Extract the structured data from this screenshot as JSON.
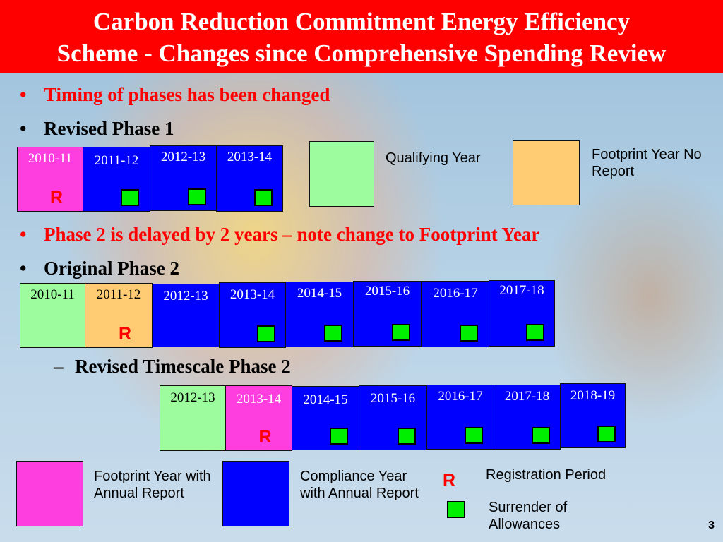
{
  "title": {
    "line1": "Carbon Reduction Commitment Energy Efficiency",
    "line2": "Scheme - Changes since Comprehensive Spending Review"
  },
  "bullets": {
    "b1": "Timing of phases has been changed",
    "b2": "Revised Phase 1",
    "b3": "Phase 2 is delayed by 2 years – note change to Footprint Year",
    "b4": "Original Phase 2",
    "b5": "Revised Timescale Phase 2",
    "dot": "•",
    "dash": "–"
  },
  "r_mark": "R",
  "revised_phase1": [
    {
      "year": "2010-11",
      "type": "footprint-annual",
      "fill": "#ff3ee0",
      "registration": true,
      "surrender": false
    },
    {
      "year": "2011-12",
      "type": "compliance",
      "fill": "#0000ff",
      "registration": false,
      "surrender": true
    },
    {
      "year": "2012-13",
      "type": "compliance",
      "fill": "#0000ff",
      "registration": false,
      "surrender": true
    },
    {
      "year": "2013-14",
      "type": "compliance",
      "fill": "#0000ff",
      "registration": false,
      "surrender": true
    }
  ],
  "original_phase2": [
    {
      "year": "2010-11",
      "type": "qualifying",
      "fill": "#9dfc9d",
      "registration": false,
      "surrender": false
    },
    {
      "year": "2011-12",
      "type": "footprint-no-report",
      "fill": "#ffcc73",
      "registration": true,
      "surrender": false
    },
    {
      "year": "2012-13",
      "type": "compliance",
      "fill": "#0000ff",
      "registration": false,
      "surrender": false
    },
    {
      "year": "2013-14",
      "type": "compliance",
      "fill": "#0000ff",
      "registration": false,
      "surrender": true
    },
    {
      "year": "2014-15",
      "type": "compliance",
      "fill": "#0000ff",
      "registration": false,
      "surrender": true
    },
    {
      "year": "2015-16",
      "type": "compliance",
      "fill": "#0000ff",
      "registration": false,
      "surrender": true
    },
    {
      "year": "2016-17",
      "type": "compliance",
      "fill": "#0000ff",
      "registration": false,
      "surrender": true
    },
    {
      "year": "2017-18",
      "type": "compliance",
      "fill": "#0000ff",
      "registration": false,
      "surrender": true
    }
  ],
  "revised_phase2": [
    {
      "year": "2012-13",
      "type": "qualifying",
      "fill": "#9dfc9d",
      "registration": false,
      "surrender": false
    },
    {
      "year": "2013-14",
      "type": "footprint-annual",
      "fill": "#ff3ee0",
      "registration": true,
      "surrender": false
    },
    {
      "year": "2014-15",
      "type": "compliance",
      "fill": "#0000ff",
      "registration": false,
      "surrender": true
    },
    {
      "year": "2015-16",
      "type": "compliance",
      "fill": "#0000ff",
      "registration": false,
      "surrender": true
    },
    {
      "year": "2016-17",
      "type": "compliance",
      "fill": "#0000ff",
      "registration": false,
      "surrender": true
    },
    {
      "year": "2017-18",
      "type": "compliance",
      "fill": "#0000ff",
      "registration": false,
      "surrender": true
    },
    {
      "year": "2018-19",
      "type": "compliance",
      "fill": "#0000ff",
      "registration": false,
      "surrender": true
    }
  ],
  "legend": {
    "qualifying": "Qualifying Year",
    "footprint_no_report": "Footprint Year No Report",
    "footprint_annual": "Footprint Year with Annual Report",
    "compliance": "Compliance Year with Annual Report",
    "registration": "Registration Period",
    "surrender": "Surrender of Allowances"
  },
  "colors": {
    "title_bg": "#ff0000",
    "compliance": "#0000ff",
    "footprint_annual": "#ff3ee0",
    "qualifying": "#9dfc9d",
    "footprint_no_report": "#ffcc73",
    "surrender": "#00ee00",
    "registration": "#ff0000"
  },
  "page_number": "3"
}
